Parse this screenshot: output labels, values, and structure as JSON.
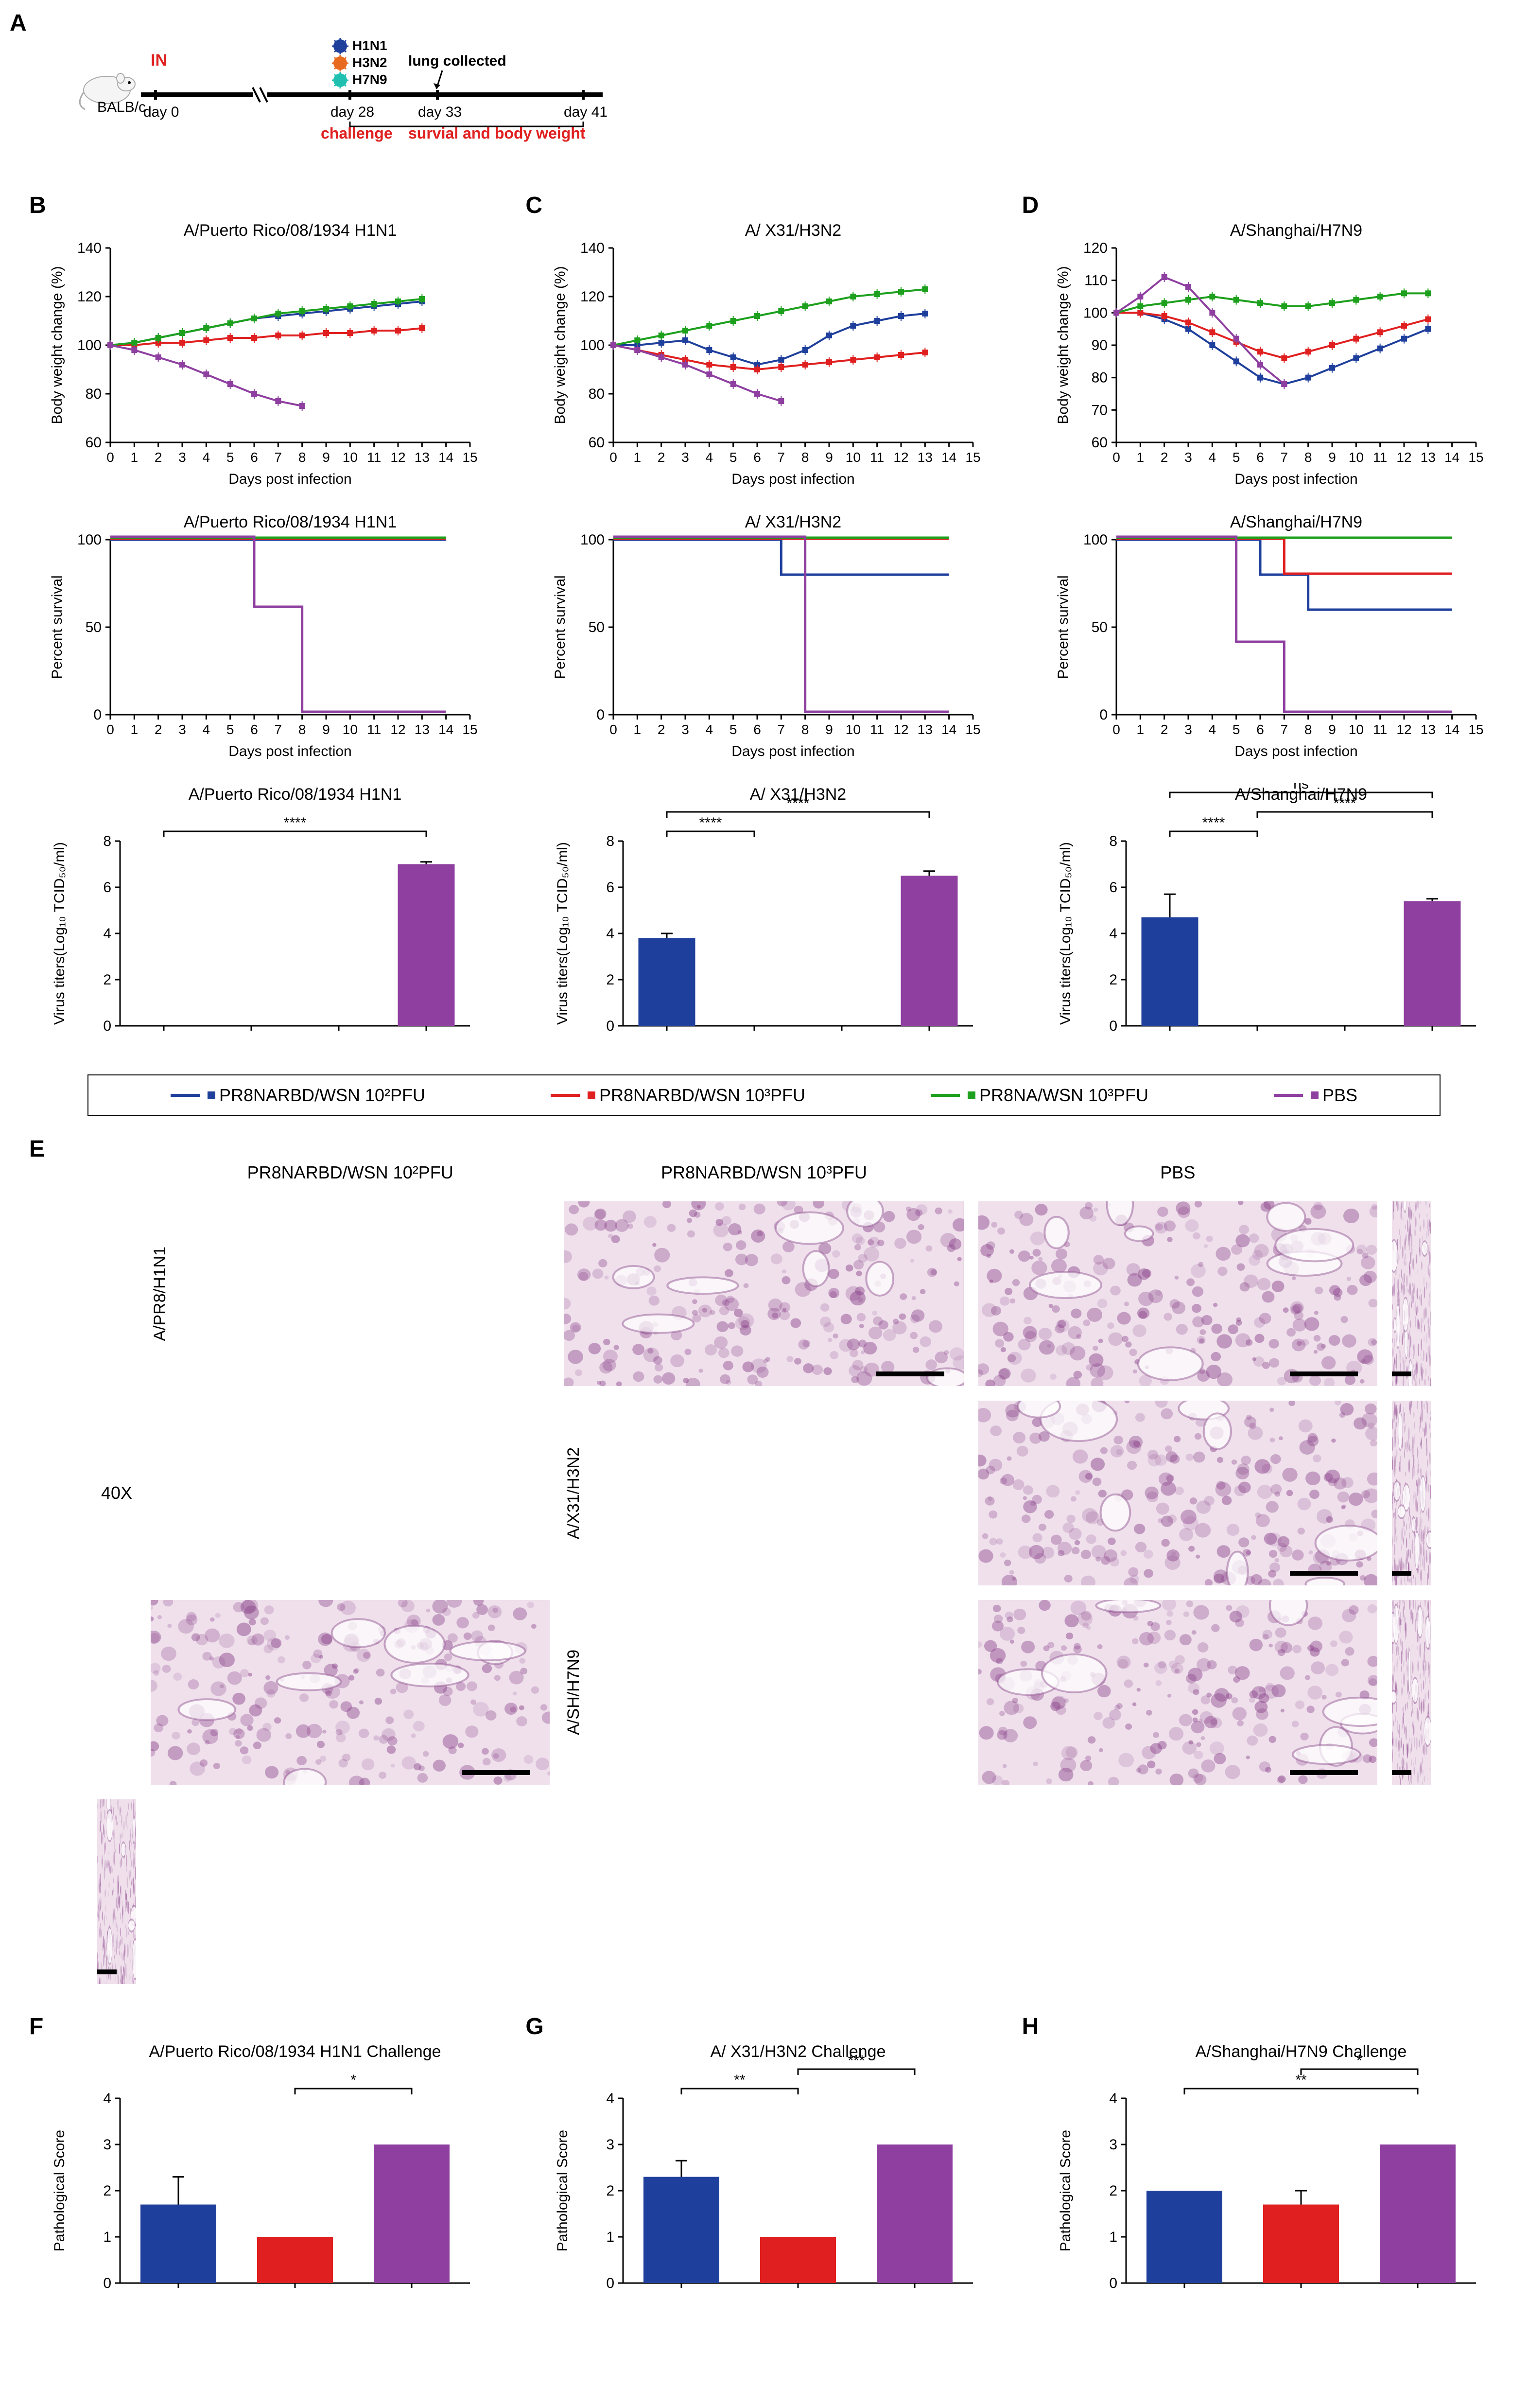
{
  "colors": {
    "blue": "#1f3f9c",
    "red": "#e02020",
    "green": "#1da01d",
    "purple": "#8e3fa0",
    "black": "#000000",
    "tick": "#000000",
    "bg": "#ffffff"
  },
  "panel_labels": {
    "A": "A",
    "B": "B",
    "C": "C",
    "D": "D",
    "E": "E",
    "F": "F",
    "G": "G",
    "H": "H"
  },
  "panelA": {
    "mouse_label": "BALB/c",
    "route": "IN",
    "timeline": {
      "days": [
        "day 0",
        "day 28",
        "day 33",
        "day 41"
      ],
      "challenge": "challenge",
      "survival": "survial and body weight",
      "lung": "lung collected",
      "viruses": [
        "H1N1",
        "H3N2",
        "H7N9"
      ],
      "virus_colors": [
        "#1f3f9c",
        "#e86a1f",
        "#1fc0b0"
      ]
    }
  },
  "legend": {
    "items": [
      {
        "label": "PR8NARBD/WSN 10²PFU",
        "color": "#1f3f9c"
      },
      {
        "label": "PR8NARBD/WSN 10³PFU",
        "color": "#e02020"
      },
      {
        "label": "PR8NA/WSN 10³PFU",
        "color": "#1da01d"
      },
      {
        "label": "PBS",
        "color": "#8e3fa0"
      }
    ]
  },
  "bodyweight_charts": {
    "ylabel": "Body weight change (%)",
    "xlabel": "Days post infection",
    "xlim": [
      0,
      15
    ],
    "xticks": [
      0,
      1,
      2,
      3,
      4,
      5,
      6,
      7,
      8,
      9,
      10,
      11,
      12,
      13,
      14,
      15
    ],
    "columns": [
      {
        "title": "A/Puerto Rico/08/1934 H1N1",
        "ylim": [
          60,
          140
        ],
        "yticks": [
          60,
          80,
          100,
          120,
          140
        ],
        "series": [
          {
            "color": "#1f3f9c",
            "y": [
              100,
              101,
              103,
              105,
              107,
              109,
              111,
              112,
              113,
              114,
              115,
              116,
              117,
              118
            ]
          },
          {
            "color": "#e02020",
            "y": [
              100,
              100,
              101,
              101,
              102,
              103,
              103,
              104,
              104,
              105,
              105,
              106,
              106,
              107
            ]
          },
          {
            "color": "#1da01d",
            "y": [
              100,
              101,
              103,
              105,
              107,
              109,
              111,
              113,
              114,
              115,
              116,
              117,
              118,
              119
            ]
          },
          {
            "color": "#8e3fa0",
            "y": [
              100,
              98,
              95,
              92,
              88,
              84,
              80,
              77,
              75
            ],
            "max_x": 8
          }
        ]
      },
      {
        "title": "A/ X31/H3N2",
        "ylim": [
          60,
          140
        ],
        "yticks": [
          60,
          80,
          100,
          120,
          140
        ],
        "series": [
          {
            "color": "#1f3f9c",
            "y": [
              100,
              100,
              101,
              102,
              98,
              95,
              92,
              94,
              98,
              104,
              108,
              110,
              112,
              113
            ]
          },
          {
            "color": "#e02020",
            "y": [
              100,
              98,
              96,
              94,
              92,
              91,
              90,
              91,
              92,
              93,
              94,
              95,
              96,
              97
            ]
          },
          {
            "color": "#1da01d",
            "y": [
              100,
              102,
              104,
              106,
              108,
              110,
              112,
              114,
              116,
              118,
              120,
              121,
              122,
              123
            ]
          },
          {
            "color": "#8e3fa0",
            "y": [
              100,
              98,
              95,
              92,
              88,
              84,
              80,
              77
            ],
            "max_x": 7
          }
        ]
      },
      {
        "title": "A/Shanghai/H7N9",
        "ylim": [
          60,
          120
        ],
        "yticks": [
          60,
          70,
          80,
          90,
          100,
          110,
          120
        ],
        "series": [
          {
            "color": "#1f3f9c",
            "y": [
              100,
              100,
              98,
              95,
              90,
              85,
              80,
              78,
              80,
              83,
              86,
              89,
              92,
              95
            ]
          },
          {
            "color": "#e02020",
            "y": [
              100,
              100,
              99,
              97,
              94,
              91,
              88,
              86,
              88,
              90,
              92,
              94,
              96,
              98
            ]
          },
          {
            "color": "#1da01d",
            "y": [
              100,
              102,
              103,
              104,
              105,
              104,
              103,
              102,
              102,
              103,
              104,
              105,
              106,
              106
            ]
          },
          {
            "color": "#8e3fa0",
            "y": [
              100,
              105,
              111,
              108,
              100,
              92,
              84,
              78
            ],
            "max_x": 7
          }
        ]
      }
    ]
  },
  "survival_charts": {
    "ylabel": "Percent survival",
    "xlabel": "Days post infection",
    "xlim": [
      0,
      15
    ],
    "xticks": [
      0,
      1,
      2,
      3,
      4,
      5,
      6,
      7,
      8,
      9,
      10,
      11,
      12,
      13,
      14,
      15
    ],
    "ylim": [
      0,
      100
    ],
    "yticks": [
      0,
      50,
      100
    ],
    "columns": [
      {
        "title": "A/Puerto Rico/08/1934 H1N1",
        "series": [
          {
            "color": "#1f3f9c",
            "steps": [
              [
                0,
                100
              ],
              [
                14,
                100
              ]
            ]
          },
          {
            "color": "#e02020",
            "steps": [
              [
                0,
                100
              ],
              [
                14,
                100
              ]
            ]
          },
          {
            "color": "#1da01d",
            "steps": [
              [
                0,
                100
              ],
              [
                14,
                100
              ]
            ]
          },
          {
            "color": "#8e3fa0",
            "steps": [
              [
                0,
                100
              ],
              [
                6,
                100
              ],
              [
                6,
                60
              ],
              [
                8,
                60
              ],
              [
                8,
                0
              ],
              [
                14,
                0
              ]
            ]
          }
        ]
      },
      {
        "title": "A/ X31/H3N2",
        "series": [
          {
            "color": "#1f3f9c",
            "steps": [
              [
                0,
                100
              ],
              [
                7,
                100
              ],
              [
                7,
                80
              ],
              [
                14,
                80
              ]
            ]
          },
          {
            "color": "#e02020",
            "steps": [
              [
                0,
                100
              ],
              [
                14,
                100
              ]
            ]
          },
          {
            "color": "#1da01d",
            "steps": [
              [
                0,
                100
              ],
              [
                14,
                100
              ]
            ]
          },
          {
            "color": "#8e3fa0",
            "steps": [
              [
                0,
                100
              ],
              [
                8,
                100
              ],
              [
                8,
                0
              ],
              [
                14,
                0
              ]
            ]
          }
        ]
      },
      {
        "title": "A/Shanghai/H7N9",
        "series": [
          {
            "color": "#1f3f9c",
            "steps": [
              [
                0,
                100
              ],
              [
                6,
                100
              ],
              [
                6,
                80
              ],
              [
                8,
                80
              ],
              [
                8,
                60
              ],
              [
                14,
                60
              ]
            ]
          },
          {
            "color": "#e02020",
            "steps": [
              [
                0,
                100
              ],
              [
                7,
                100
              ],
              [
                7,
                80
              ],
              [
                14,
                80
              ]
            ]
          },
          {
            "color": "#1da01d",
            "steps": [
              [
                0,
                100
              ],
              [
                14,
                100
              ]
            ]
          },
          {
            "color": "#8e3fa0",
            "steps": [
              [
                0,
                100
              ],
              [
                5,
                100
              ],
              [
                5,
                40
              ],
              [
                7,
                40
              ],
              [
                7,
                0
              ],
              [
                14,
                0
              ]
            ]
          }
        ]
      }
    ]
  },
  "titer_charts": {
    "ylabel": "Virus titers(Log₁₀ TCID₅₀/ml)",
    "ylim": [
      0,
      8
    ],
    "yticks": [
      0,
      2,
      4,
      6,
      8
    ],
    "bar_labels": [
      "PR8NARBD/WSN 10²PFU",
      "PR8NARBD/WSN 10³PFU",
      "PR8NA/WSN 10³PFU",
      "PBS"
    ],
    "bar_colors": [
      "#1f3f9c",
      "#e02020",
      "#1da01d",
      "#8e3fa0"
    ],
    "columns": [
      {
        "title": "A/Puerto Rico/08/1934 H1N1",
        "values": [
          0,
          0,
          0,
          7.0
        ],
        "err": [
          0,
          0,
          0,
          0.1
        ],
        "sig": [
          {
            "i": 0,
            "j": 3,
            "label": "****"
          }
        ]
      },
      {
        "title": "A/ X31/H3N2",
        "values": [
          3.8,
          0,
          0,
          6.5
        ],
        "err": [
          0.2,
          0,
          0,
          0.2
        ],
        "sig": [
          {
            "i": 0,
            "j": 1,
            "label": "****"
          },
          {
            "i": 0,
            "j": 3,
            "label": "****"
          }
        ]
      },
      {
        "title": "A/Shanghai/H7N9",
        "values": [
          4.7,
          0,
          0,
          5.4
        ],
        "err": [
          1.0,
          0,
          0,
          0.1
        ],
        "sig": [
          {
            "i": 0,
            "j": 1,
            "label": "****"
          },
          {
            "i": 1,
            "j": 3,
            "label": "****"
          },
          {
            "i": 0,
            "j": 3,
            "label": "ns"
          }
        ]
      }
    ]
  },
  "histology": {
    "columns": [
      "PR8NARBD/WSN 10²PFU",
      "PR8NARBD/WSN 10³PFU",
      "PBS"
    ],
    "rows": [
      "A/PR8/H1N1",
      "A/X31/H3N2",
      "A/SH/H7N9"
    ],
    "magnification": "40X"
  },
  "pathscore_charts": {
    "ylabel": "Pathological Score",
    "ylim": [
      0,
      4
    ],
    "yticks": [
      0,
      1,
      2,
      3,
      4
    ],
    "bar_colors": [
      "#1f3f9c",
      "#e02020",
      "#8e3fa0"
    ],
    "columns": [
      {
        "title": "A/Puerto Rico/08/1934 H1N1 Challenge",
        "values": [
          1.7,
          1.0,
          3.0
        ],
        "err": [
          0.6,
          0,
          0
        ],
        "sig": [
          {
            "i": 1,
            "j": 2,
            "label": "*"
          }
        ]
      },
      {
        "title": "A/ X31/H3N2 Challenge",
        "values": [
          2.3,
          1.0,
          3.0
        ],
        "err": [
          0.35,
          0,
          0
        ],
        "sig": [
          {
            "i": 0,
            "j": 1,
            "label": "**"
          },
          {
            "i": 1,
            "j": 2,
            "label": "***"
          }
        ]
      },
      {
        "title": "A/Shanghai/H7N9 Challenge",
        "values": [
          2.0,
          1.7,
          3.0
        ],
        "err": [
          0,
          0.3,
          0
        ],
        "sig": [
          {
            "i": 0,
            "j": 2,
            "label": "**"
          },
          {
            "i": 1,
            "j": 2,
            "label": "*"
          }
        ]
      }
    ]
  },
  "chart_style": {
    "axis_color": "#000000",
    "axis_width": 3,
    "tick_len": 10,
    "line_width": 4,
    "marker_size": 6,
    "font_size_axis": 30,
    "font_size_title": 34,
    "bar_width": 0.65
  }
}
